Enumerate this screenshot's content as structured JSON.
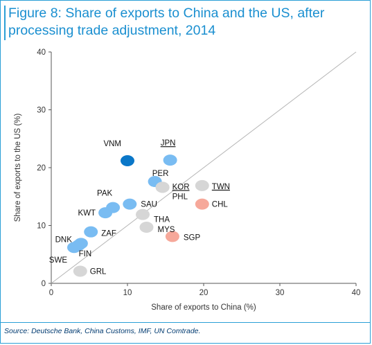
{
  "figure": {
    "title": "Figure 8: Share of exports to China and the US, after processing trade adjustment, 2014",
    "source": "Source: Deutsche Bank, China Customs, IMF, UN Comtrade."
  },
  "colors": {
    "light_blue": "#79bcf2",
    "dark_blue": "#0a77c8",
    "gray": "#d6d6d6",
    "salmon": "#f6a89a",
    "diagonal": "#b5b5b5",
    "border": "#2a9fd6"
  },
  "chart_data": {
    "type": "scatter",
    "xlabel": "Share of exports to China (%)",
    "ylabel": "Share of exports to the US (%)",
    "xlim": [
      0,
      40
    ],
    "ylim": [
      0,
      40
    ],
    "xticks": [
      0,
      10,
      20,
      30,
      40
    ],
    "yticks": [
      0,
      10,
      20,
      30,
      40
    ],
    "grid": false,
    "reference_line": "45-degree diagonal",
    "points": [
      {
        "label": "VNM",
        "x": 10.0,
        "y": 21.2,
        "color": "dark_blue",
        "underline": false
      },
      {
        "label": "JPN",
        "x": 15.6,
        "y": 21.3,
        "color": "light_blue",
        "underline": true
      },
      {
        "label": "PER",
        "x": 13.6,
        "y": 17.6,
        "color": "light_blue",
        "underline": false
      },
      {
        "label": "KOR",
        "x": 14.6,
        "y": 16.6,
        "color": "gray",
        "underline": true
      },
      {
        "label": "PHL",
        "x": 14.6,
        "y": 16.6,
        "color": "gray",
        "underline": false
      },
      {
        "label": "TWN",
        "x": 19.8,
        "y": 16.9,
        "color": "gray",
        "underline": true
      },
      {
        "label": "CHL",
        "x": 19.8,
        "y": 13.7,
        "color": "salmon",
        "underline": false
      },
      {
        "label": "PAK",
        "x": 8.1,
        "y": 13.1,
        "color": "light_blue",
        "underline": false
      },
      {
        "label": "SAU",
        "x": 10.3,
        "y": 13.7,
        "color": "light_blue",
        "underline": false
      },
      {
        "label": "KWT",
        "x": 7.1,
        "y": 12.2,
        "color": "light_blue",
        "underline": false
      },
      {
        "label": "THA",
        "x": 12.0,
        "y": 11.9,
        "color": "gray",
        "underline": false
      },
      {
        "label": "MYS",
        "x": 12.5,
        "y": 9.7,
        "color": "gray",
        "underline": false
      },
      {
        "label": "ZAF",
        "x": 5.2,
        "y": 8.9,
        "color": "light_blue",
        "underline": false
      },
      {
        "label": "SGP",
        "x": 15.9,
        "y": 8.1,
        "color": "salmon",
        "underline": false
      },
      {
        "label": "DNK",
        "x": 3.9,
        "y": 6.9,
        "color": "light_blue",
        "underline": false
      },
      {
        "label": "FIN",
        "x": 3.6,
        "y": 6.6,
        "color": "light_blue",
        "underline": false
      },
      {
        "label": "SWE",
        "x": 3.0,
        "y": 6.2,
        "color": "light_blue",
        "underline": false
      },
      {
        "label": "GRL",
        "x": 3.8,
        "y": 2.1,
        "color": "gray",
        "underline": false
      }
    ]
  }
}
